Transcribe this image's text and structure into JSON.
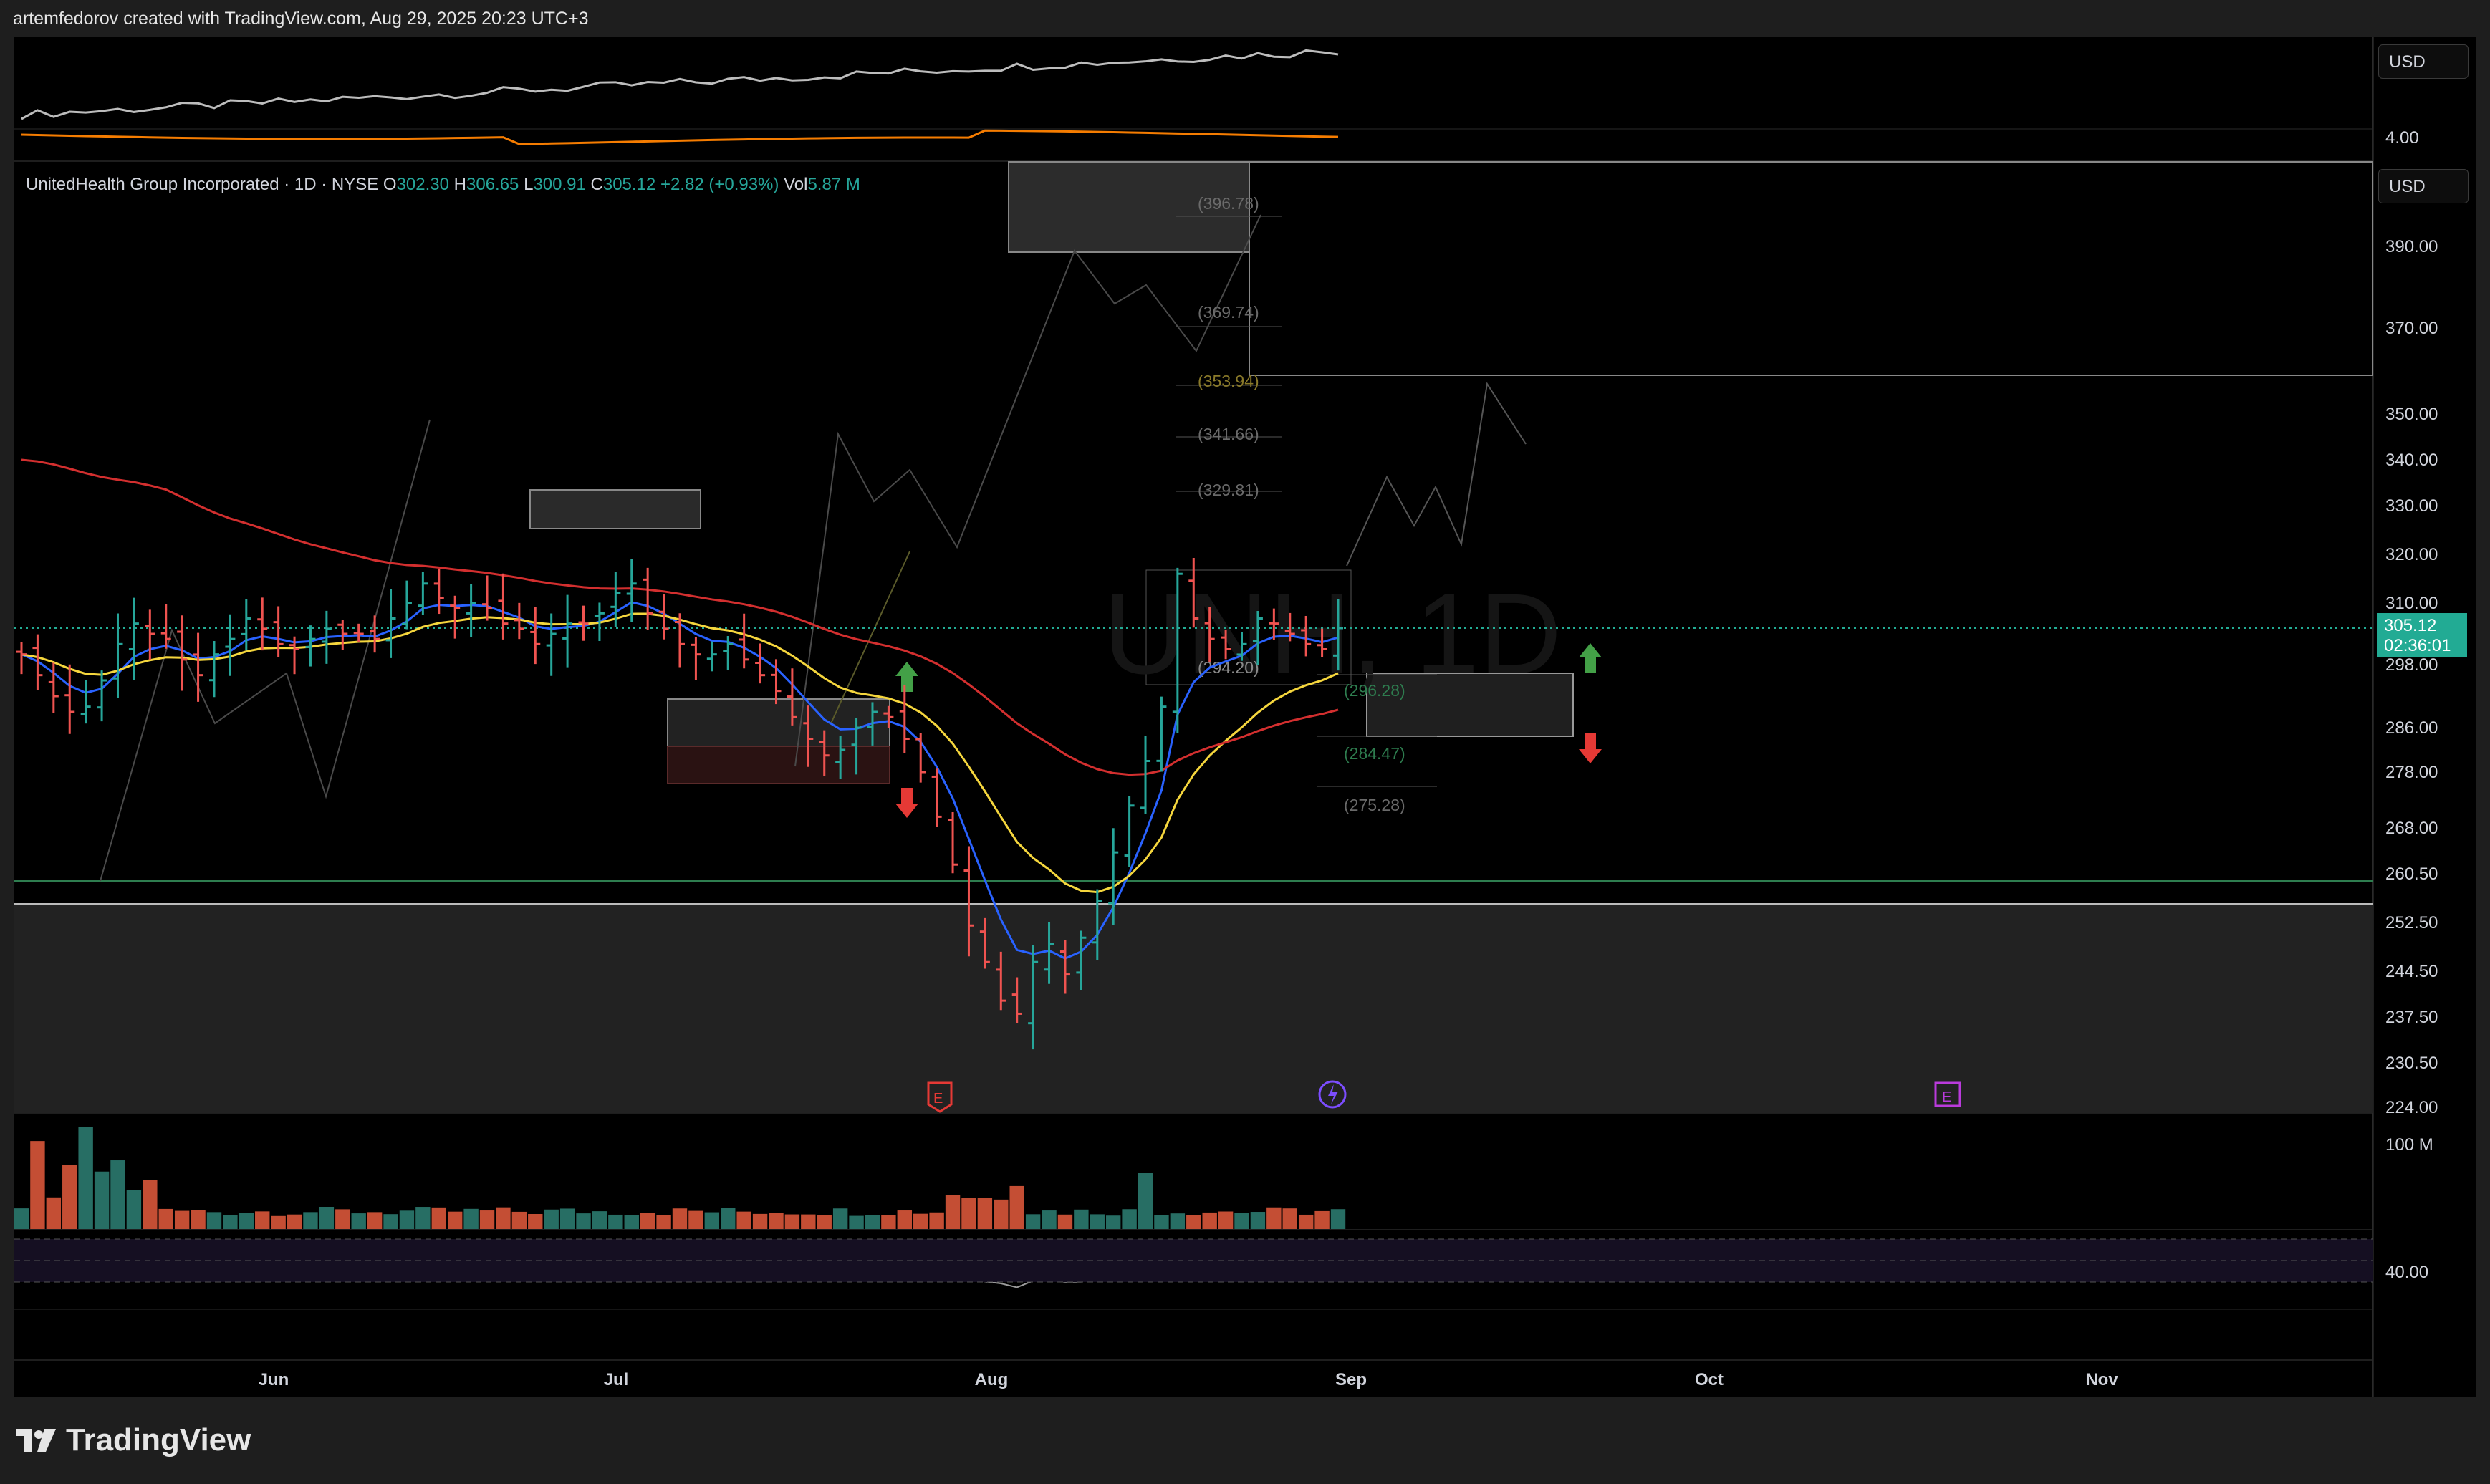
{
  "header": {
    "attribution": "artemfedorov created with TradingView.com, Aug 29, 2025 20:23 UTC+3"
  },
  "currency_top": "USD",
  "currency_main": "USD",
  "top_pane_tick": "4.00",
  "legend": {
    "name": "UnitedHealth Group Incorporated · 1D · NYSE",
    "o_label": "O",
    "o": "302.30",
    "h_label": "H",
    "h": "306.65",
    "l_label": "L",
    "l": "300.91",
    "c_label": "C",
    "c": "305.12",
    "change": "+2.82 (+0.93%)",
    "vol_label": "Vol",
    "vol": "5.87 M"
  },
  "watermark": "UNH, 1D",
  "last_price": {
    "price": "305.12",
    "countdown": "02:36:01"
  },
  "brand": "TradingView",
  "chart_data": {
    "type": "ohlc",
    "price_axis_ticks": [
      "390.00",
      "370.00",
      "350.00",
      "340.00",
      "330.00",
      "320.00",
      "310.00",
      "298.00",
      "286.00",
      "278.00",
      "268.00",
      "260.50",
      "252.50",
      "244.50",
      "237.50",
      "230.50",
      "224.00"
    ],
    "time_axis": [
      "Jun",
      "Jul",
      "Aug",
      "Sep",
      "Oct",
      "Nov"
    ],
    "volume_tick": "100 M",
    "oscillator_tick": "40.00",
    "fib_levels": [
      "(396.78)",
      "(369.74)",
      "(353.94)",
      "(341.66)",
      "(329.81)",
      "(294.20)",
      "(296.28)",
      "(284.47)",
      "(275.28)"
    ],
    "closes": [
      300,
      296,
      292,
      289,
      290,
      295,
      302,
      306,
      304,
      303,
      299,
      296,
      300,
      303,
      307,
      305,
      302,
      301,
      303,
      305,
      304,
      304,
      303,
      307,
      310,
      314,
      311,
      309,
      310,
      309,
      306,
      305,
      302,
      304,
      306,
      306,
      308,
      312,
      314,
      308,
      305,
      302,
      300,
      300,
      302,
      299,
      296,
      293,
      288,
      284,
      281,
      282,
      286,
      289,
      288,
      284,
      278,
      270,
      262,
      252,
      246,
      240,
      238,
      246,
      249,
      244,
      250,
      256,
      264,
      272,
      280,
      290,
      316,
      307,
      303,
      301,
      302,
      307,
      306,
      304,
      302,
      301,
      305.12
    ],
    "event_markers": [
      "E",
      "E"
    ],
    "colors": {
      "up": "#26a69a",
      "down": "#ef5350",
      "ema_fast": "#2962ff",
      "ema_mid": "#f5d63d",
      "ema_slow": "#d32f2f",
      "bg": "#000000"
    }
  }
}
